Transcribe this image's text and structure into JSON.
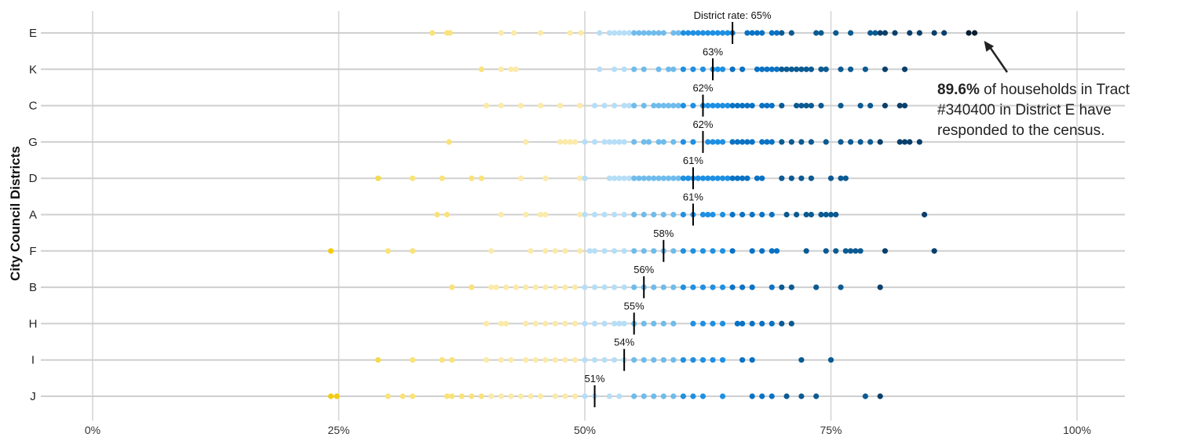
{
  "chart_data": {
    "type": "scatter",
    "ylabel": "City Council Districts",
    "xlim": [
      0,
      100
    ],
    "x_ticks": [
      "0%",
      "25%",
      "50%",
      "75%",
      "100%"
    ],
    "x_tick_values": [
      0,
      25,
      50,
      75,
      100
    ],
    "grid": true,
    "color_bins": [
      {
        "max": 25,
        "color": "#f2cc12"
      },
      {
        "max": 30,
        "color": "#f6da4e"
      },
      {
        "max": 40,
        "color": "#f9e278"
      },
      {
        "max": 50,
        "color": "#fbeaa8"
      },
      {
        "max": 55,
        "color": "#b6def6"
      },
      {
        "max": 60,
        "color": "#6fbcec"
      },
      {
        "max": 65,
        "color": "#1e90e3"
      },
      {
        "max": 70,
        "color": "#0a72c4"
      },
      {
        "max": 80,
        "color": "#0b5a92"
      },
      {
        "max": 88,
        "color": "#0a3f6b"
      },
      {
        "max": 101,
        "color": "#0a1d33"
      }
    ],
    "districts": [
      {
        "name": "E",
        "rate": 65,
        "rate_label": "District rate: 65%",
        "tracts": [
          34.5,
          36,
          36.3,
          41.5,
          42.8,
          45.5,
          48.5,
          49.6,
          51.5,
          52.5,
          53,
          53.5,
          54,
          54.5,
          55,
          55.5,
          56,
          56.5,
          57,
          57.5,
          58,
          59,
          59.5,
          60,
          60.5,
          61,
          61.5,
          62,
          62.5,
          63,
          63.5,
          64,
          64.5,
          65,
          66.5,
          67,
          67.5,
          68,
          69,
          69.5,
          70,
          71,
          73.5,
          74,
          75.5,
          77,
          79,
          79.5,
          80,
          80.5,
          81.5,
          83,
          84,
          85.5,
          86.5,
          89,
          89.6
        ]
      },
      {
        "name": "K",
        "rate": 63,
        "rate_label": "63%",
        "tracts": [
          39.5,
          41.5,
          42.5,
          43,
          51.5,
          53,
          54,
          55,
          56,
          57.5,
          58.5,
          59,
          60,
          61,
          62,
          63,
          63.5,
          64,
          65,
          66,
          67.5,
          68,
          68.5,
          69,
          69.5,
          70,
          70.5,
          71,
          71.5,
          72,
          72.5,
          73,
          74,
          74.5,
          76,
          77,
          78.5,
          80.5,
          82.5
        ]
      },
      {
        "name": "C",
        "rate": 62,
        "rate_label": "62%",
        "tracts": [
          40,
          41.5,
          43.5,
          45.5,
          47.5,
          49.5,
          51,
          52,
          53,
          54,
          54.5,
          55,
          56,
          57,
          57.5,
          58,
          58.5,
          59,
          59.5,
          60,
          61,
          62,
          62.5,
          63,
          63.5,
          64,
          64.5,
          65,
          65.5,
          66,
          66.5,
          67,
          68,
          68.5,
          69,
          70,
          71.5,
          72,
          72.5,
          73,
          74,
          76,
          78,
          79,
          80.5,
          82,
          82.5
        ]
      },
      {
        "name": "G",
        "rate": 62,
        "rate_label": "62%",
        "tracts": [
          36.2,
          44,
          47.5,
          48,
          48.5,
          49,
          50,
          51,
          52,
          52.5,
          53,
          53.5,
          54,
          55,
          56,
          56.5,
          57.5,
          58,
          59,
          60,
          61,
          62.5,
          63,
          63.5,
          64,
          65,
          65.5,
          66,
          66.5,
          67,
          68,
          68.5,
          69,
          70,
          71,
          72,
          73,
          74.5,
          76,
          77,
          78,
          79,
          80,
          82,
          82.5,
          83,
          84
        ]
      },
      {
        "name": "D",
        "rate": 61,
        "rate_label": "61%",
        "tracts": [
          29,
          32.5,
          35.5,
          38.5,
          39.5,
          43.5,
          46,
          49.5,
          50,
          52.5,
          53,
          53.5,
          54,
          54.5,
          55,
          55.5,
          56,
          56.5,
          57,
          57.5,
          58,
          58.5,
          59,
          59.5,
          60,
          60.5,
          61,
          61.5,
          62,
          62.5,
          63,
          63.5,
          64,
          64.5,
          65,
          65.5,
          66,
          66.5,
          67.5,
          68,
          70,
          71,
          72,
          73,
          75,
          76,
          76.5
        ]
      },
      {
        "name": "A",
        "rate": 61,
        "rate_label": "61%",
        "tracts": [
          35,
          36,
          41.5,
          44,
          45.5,
          46,
          49.5,
          50,
          51,
          52,
          53,
          54,
          55,
          56,
          57,
          58,
          59,
          60,
          61,
          62,
          62.5,
          63,
          64,
          65,
          66,
          67,
          68,
          69,
          70.5,
          71.5,
          72.5,
          73,
          74,
          74.5,
          75,
          75.5,
          84.5
        ]
      },
      {
        "name": "F",
        "rate": 58,
        "rate_label": "58%",
        "tracts": [
          24.2,
          30,
          32.5,
          40.5,
          44.5,
          46,
          47,
          48,
          49.5,
          50.5,
          51,
          52,
          53,
          54,
          55,
          56,
          57,
          58,
          59,
          60,
          61,
          62,
          63,
          64,
          65,
          67,
          68,
          69,
          69.5,
          72.5,
          74.5,
          75.5,
          76.5,
          77,
          77.5,
          78,
          80.5,
          85.5
        ]
      },
      {
        "name": "B",
        "rate": 56,
        "rate_label": "56%",
        "tracts": [
          36.5,
          38.5,
          40.5,
          41,
          42,
          43,
          44,
          45,
          46,
          47,
          48,
          49,
          50,
          51,
          52,
          53,
          54,
          55,
          56,
          57,
          58,
          59,
          60,
          61,
          62,
          63,
          64,
          65,
          66,
          67,
          69,
          70,
          71,
          73.5,
          76,
          80
        ]
      },
      {
        "name": "H",
        "rate": 55,
        "rate_label": "55%",
        "tracts": [
          40,
          41.5,
          42,
          44,
          45,
          46,
          47,
          48,
          49,
          50,
          51,
          52,
          53,
          53.5,
          54,
          55,
          56,
          57,
          58,
          59,
          61,
          62,
          63,
          64,
          65.5,
          66,
          67,
          68,
          69,
          70,
          71
        ]
      },
      {
        "name": "I",
        "rate": 54,
        "rate_label": "54%",
        "tracts": [
          29,
          32.5,
          35.5,
          36.5,
          40,
          41.5,
          42.5,
          44,
          45,
          46,
          47,
          48,
          49,
          50,
          51,
          52,
          53,
          54,
          55,
          56,
          57,
          58,
          59,
          60,
          61,
          62,
          63,
          64,
          66,
          67,
          72,
          75
        ]
      },
      {
        "name": "J",
        "rate": 51,
        "rate_label": "51%",
        "tracts": [
          24.2,
          24.8,
          30,
          31.5,
          32.5,
          36,
          36.5,
          37.5,
          38.5,
          39.5,
          40.5,
          41.5,
          42.5,
          43.5,
          44.5,
          45.5,
          47,
          48,
          49,
          50,
          51,
          52.5,
          53.5,
          55,
          56,
          57,
          58,
          59,
          60,
          61,
          62,
          64,
          67,
          68,
          69,
          70.5,
          72,
          73.5,
          78.5,
          80
        ]
      }
    ],
    "annotation": {
      "bold": "89.6%",
      "text": " of households in Tract #340400 in District E have responded to the census.",
      "target_district": "E",
      "target_x": 89.6
    }
  }
}
